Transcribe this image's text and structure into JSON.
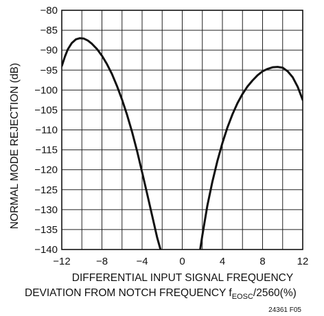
{
  "chart_data": {
    "type": "line",
    "title": "",
    "xlabel_line1": "DIFFERENTIAL INPUT SIGNAL FREQUENCY",
    "xlabel_line2_main": "DEVIATION FROM NOTCH FREQUENCY f",
    "xlabel_line2_sub": "EOSC",
    "xlabel_line2_tail": "/2560(%)",
    "ylabel": "NORMAL MODE REJECTION (dB)",
    "xlim": [
      -12,
      12
    ],
    "ylim": [
      -140,
      -80
    ],
    "x_ticks": [
      -12,
      -8,
      -4,
      0,
      4,
      8,
      12
    ],
    "x_tick_labels": [
      "−12",
      "−8",
      "−4",
      "0",
      "4",
      "8",
      "12"
    ],
    "y_ticks": [
      -80,
      -85,
      -90,
      -95,
      -100,
      -105,
      -110,
      -115,
      -120,
      -125,
      -130,
      -135,
      -140
    ],
    "y_tick_labels": [
      "−80",
      "−85",
      "−90",
      "−95",
      "−100",
      "−105",
      "−110",
      "−115",
      "−120",
      "−125",
      "−130",
      "−135",
      "−140"
    ],
    "grid": true,
    "series": [
      {
        "x": [
          -12,
          -11.7,
          -11.4,
          -11,
          -10.6,
          -10.2,
          -9.8,
          -9.4,
          -9,
          -8.5,
          -8,
          -7.5,
          -7,
          -6.5,
          -6,
          -5.5,
          -5,
          -4.5,
          -4,
          -3.5,
          -3,
          -2.5,
          -2,
          -1.8
        ],
        "y": [
          -94,
          -91.7,
          -89.8,
          -88.2,
          -87.3,
          -87,
          -87.1,
          -87.6,
          -88.4,
          -89.7,
          -91.4,
          -93.5,
          -96,
          -99,
          -102.4,
          -106.2,
          -110.5,
          -115.3,
          -120.6,
          -126,
          -131.5,
          -137,
          -141.5,
          -143
        ]
      },
      {
        "x": [
          1.6,
          2,
          2.5,
          3,
          3.5,
          4,
          4.5,
          5,
          5.5,
          6,
          6.5,
          7,
          7.5,
          8,
          8.5,
          9,
          9.5,
          10,
          10.5,
          11,
          11.5,
          12
        ],
        "y": [
          -143,
          -136.5,
          -129,
          -123,
          -117.8,
          -113.3,
          -109.4,
          -106.1,
          -103.3,
          -101,
          -99.1,
          -97.6,
          -96.3,
          -95.3,
          -94.7,
          -94.3,
          -94.2,
          -94.4,
          -95.3,
          -96.8,
          -99.2,
          -102.5
        ]
      }
    ],
    "note": "24361 F05"
  }
}
